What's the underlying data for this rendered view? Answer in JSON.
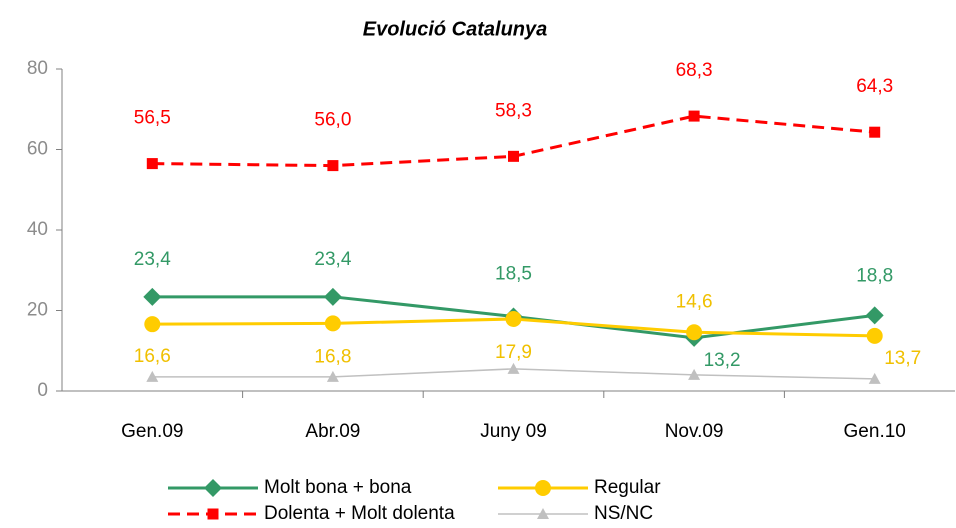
{
  "chart_data": {
    "type": "line",
    "title": "Evolució Catalunya",
    "categories": [
      "Gen.09",
      "Abr.09",
      "Juny 09",
      "Nov.09",
      "Gen.10"
    ],
    "ylim": [
      0,
      80
    ],
    "yticks": [
      0,
      20,
      40,
      60,
      80
    ],
    "series": [
      {
        "name": "Molt bona + bona",
        "color": "#339966",
        "marker": "diamond",
        "dash": "solid",
        "values": [
          23.4,
          23.4,
          18.5,
          13.2,
          18.8
        ],
        "value_labels": [
          "23,4",
          "23,4",
          "18,5",
          "13,2",
          "18,8"
        ]
      },
      {
        "name": "Regular",
        "color": "#ffcc00",
        "marker": "circle",
        "dash": "solid",
        "values": [
          16.6,
          16.8,
          17.9,
          14.6,
          13.7
        ],
        "value_labels": [
          "16,6",
          "16,8",
          "17,9",
          "14,6",
          "13,7"
        ]
      },
      {
        "name": "Dolenta + Molt dolenta",
        "color": "#ff0000",
        "marker": "square",
        "dash": "dashed",
        "values": [
          56.5,
          56.0,
          58.3,
          68.3,
          64.3
        ],
        "value_labels": [
          "56,5",
          "56,0",
          "58,3",
          "68,3",
          "64,3"
        ]
      },
      {
        "name": "NS/NC",
        "color": "#c0c0c0",
        "marker": "triangle",
        "dash": "solid",
        "values": [
          3.5,
          3.5,
          5.5,
          4.0,
          3.0
        ]
      }
    ]
  }
}
